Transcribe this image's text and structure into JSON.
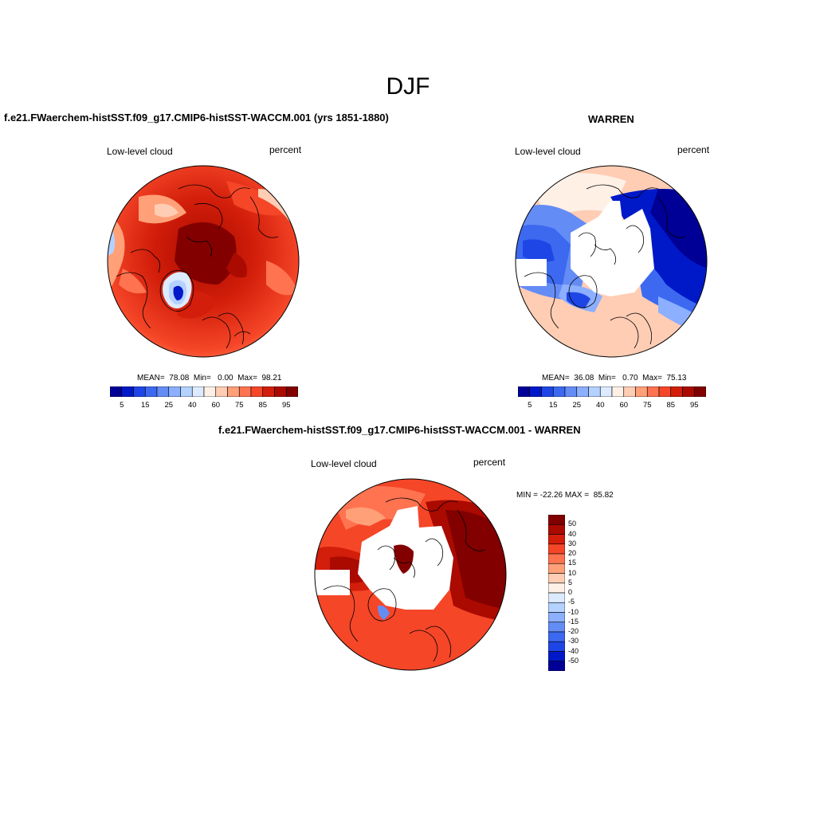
{
  "figure": {
    "title": "DJF"
  },
  "panels": [
    {
      "id": "test",
      "title": "f.e21.FWaerchem-histSST.f09_g17.CMIP6-histSST-WACCM.001 (yrs 1851-1880)",
      "variable": "Low-level cloud",
      "units": "percent",
      "stats_text": "MEAN=  78.08  Min=   0.00  Max=  98.21",
      "mean": 78.08,
      "min": 0.0,
      "max": 98.21,
      "colorbar": {
        "tick_labels": [
          "5",
          "15",
          "25",
          "40",
          "60",
          "75",
          "85",
          "95"
        ],
        "colors": [
          "#000096",
          "#0019c8",
          "#1e46e6",
          "#3c69f0",
          "#648cf5",
          "#8cafff",
          "#b4d2ff",
          "#dcebff",
          "#fff0e6",
          "#ffcdb4",
          "#ffa078",
          "#ff7350",
          "#f54628",
          "#d21e0a",
          "#aa0a00",
          "#820000"
        ]
      }
    },
    {
      "id": "obs",
      "title": "WARREN",
      "variable": "Low-level cloud",
      "units": "percent",
      "stats_text": "MEAN=  36.08  Min=   0.70  Max=  75.13",
      "mean": 36.08,
      "min": 0.7,
      "max": 75.13,
      "colorbar": {
        "tick_labels": [
          "5",
          "15",
          "25",
          "40",
          "60",
          "75",
          "85",
          "95"
        ],
        "colors": [
          "#000096",
          "#0019c8",
          "#1e46e6",
          "#3c69f0",
          "#648cf5",
          "#8cafff",
          "#b4d2ff",
          "#dcebff",
          "#fff0e6",
          "#ffcdb4",
          "#ffa078",
          "#ff7350",
          "#f54628",
          "#d21e0a",
          "#aa0a00",
          "#820000"
        ]
      }
    },
    {
      "id": "diff",
      "title": "f.e21.FWaerchem-histSST.f09_g17.CMIP6-histSST-WACCM.001 - WARREN",
      "variable": "Low-level cloud",
      "units": "percent",
      "stats_text": "MIN = -22.26 MAX =  85.82",
      "min": -22.26,
      "max": 85.82,
      "colorbar": {
        "tick_labels": [
          "50",
          "40",
          "30",
          "20",
          "15",
          "10",
          "5",
          "0",
          "-5",
          "-10",
          "-15",
          "-20",
          "-30",
          "-40",
          "-50"
        ],
        "colors": [
          "#820000",
          "#aa0a00",
          "#d21e0a",
          "#f54628",
          "#ff7350",
          "#ffa078",
          "#ffcdb4",
          "#fff0e6",
          "#dcebff",
          "#b4d2ff",
          "#8cafff",
          "#648cf5",
          "#3c69f0",
          "#1e46e6",
          "#0019c8",
          "#000096"
        ]
      }
    }
  ],
  "map_colors": {
    "missing": "#ffffff",
    "coastline": "#000000"
  }
}
